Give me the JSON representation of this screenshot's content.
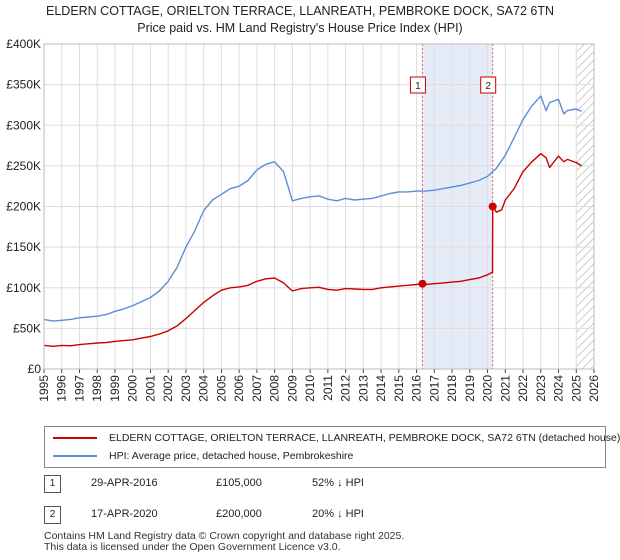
{
  "title_line1": "ELDERN COTTAGE, ORIELTON TERRACE, LLANREATH, PEMBROKE DOCK, SA72 6TN",
  "title_line2": "Price paid vs. HM Land Registry's House Price Index (HPI)",
  "chart_data": {
    "type": "line",
    "xlim": [
      1995,
      2026
    ],
    "ylim": [
      0,
      400000
    ],
    "y_ticks": [
      {
        "value": 0,
        "label": "£0"
      },
      {
        "value": 50000,
        "label": "£50K"
      },
      {
        "value": 100000,
        "label": "£100K"
      },
      {
        "value": 150000,
        "label": "£150K"
      },
      {
        "value": 200000,
        "label": "£200K"
      },
      {
        "value": 250000,
        "label": "£250K"
      },
      {
        "value": 300000,
        "label": "£300K"
      },
      {
        "value": 350000,
        "label": "£350K"
      },
      {
        "value": 400000,
        "label": "£400K"
      }
    ],
    "x_ticks": [
      "1995",
      "1996",
      "1997",
      "1998",
      "1999",
      "2000",
      "2001",
      "2002",
      "2003",
      "2004",
      "2005",
      "2006",
      "2007",
      "2008",
      "2009",
      "2010",
      "2011",
      "2012",
      "2013",
      "2014",
      "2015",
      "2016",
      "2017",
      "2018",
      "2019",
      "2020",
      "2021",
      "2022",
      "2023",
      "2024",
      "2025",
      "2026"
    ],
    "grid": true,
    "highlight_span": [
      2016.33,
      2020.29
    ],
    "data_end_hatch_from": 2025.0,
    "markers": [
      {
        "label": "1",
        "x": 2016.33
      },
      {
        "label": "2",
        "x": 2020.29
      }
    ],
    "series": [
      {
        "name": "ELDERN COTTAGE, ORIELTON TERRACE, LLANREATH, PEMBROKE DOCK, SA72 6TN (detached house)",
        "color": "#cc0000",
        "x": [
          1995.0,
          1995.5,
          1996.0,
          1996.5,
          1997.0,
          1997.5,
          1998.0,
          1998.5,
          1999.0,
          1999.5,
          2000.0,
          2000.5,
          2001.0,
          2001.5,
          2002.0,
          2002.5,
          2003.0,
          2003.5,
          2004.0,
          2004.5,
          2005.0,
          2005.5,
          2006.0,
          2006.5,
          2007.0,
          2007.5,
          2008.0,
          2008.5,
          2009.0,
          2009.5,
          2010.0,
          2010.5,
          2011.0,
          2011.5,
          2012.0,
          2012.5,
          2013.0,
          2013.5,
          2014.0,
          2014.5,
          2015.0,
          2015.5,
          2016.0,
          2016.33,
          2016.5,
          2017.0,
          2017.5,
          2018.0,
          2018.5,
          2019.0,
          2019.5,
          2020.0,
          2020.28,
          2020.29,
          2020.5,
          2020.8,
          2021.0,
          2021.5,
          2022.0,
          2022.5,
          2023.0,
          2023.3,
          2023.5,
          2024.0,
          2024.3,
          2024.5,
          2025.0,
          2025.3
        ],
        "y": [
          29000,
          28000,
          29000,
          28500,
          30000,
          31000,
          32000,
          32500,
          34000,
          35000,
          36000,
          38000,
          40000,
          43000,
          47000,
          53000,
          62000,
          72000,
          82000,
          90000,
          97000,
          100000,
          101000,
          103000,
          108000,
          111000,
          112000,
          106000,
          96000,
          99000,
          100000,
          100500,
          98000,
          97000,
          99000,
          98500,
          98000,
          98000,
          100000,
          101000,
          102000,
          103000,
          104000,
          105000,
          104000,
          105000,
          106000,
          107000,
          108000,
          110000,
          112000,
          116000,
          119000,
          200000,
          193000,
          196000,
          208000,
          222000,
          243000,
          255000,
          265000,
          260000,
          248000,
          262000,
          255000,
          258000,
          254000,
          250000
        ]
      },
      {
        "name": "HPI: Average price, detached house, Pembrokeshire",
        "color": "#5b8ed6",
        "x": [
          1995.0,
          1995.5,
          1996.0,
          1996.5,
          1997.0,
          1997.5,
          1998.0,
          1998.5,
          1999.0,
          1999.5,
          2000.0,
          2000.5,
          2001.0,
          2001.5,
          2002.0,
          2002.5,
          2003.0,
          2003.5,
          2004.0,
          2004.5,
          2005.0,
          2005.5,
          2006.0,
          2006.5,
          2007.0,
          2007.5,
          2008.0,
          2008.5,
          2009.0,
          2009.5,
          2010.0,
          2010.5,
          2011.0,
          2011.5,
          2012.0,
          2012.5,
          2013.0,
          2013.5,
          2014.0,
          2014.5,
          2015.0,
          2015.5,
          2016.0,
          2016.5,
          2017.0,
          2017.5,
          2018.0,
          2018.5,
          2019.0,
          2019.5,
          2020.0,
          2020.5,
          2021.0,
          2021.5,
          2022.0,
          2022.5,
          2023.0,
          2023.3,
          2023.5,
          2024.0,
          2024.3,
          2024.5,
          2025.0,
          2025.3
        ],
        "y": [
          61000,
          59000,
          60000,
          61000,
          63000,
          64000,
          65000,
          67000,
          71000,
          74000,
          78000,
          83000,
          88000,
          96000,
          108000,
          125000,
          150000,
          170000,
          195000,
          208000,
          215000,
          222000,
          225000,
          232000,
          245000,
          252000,
          255000,
          243000,
          207000,
          210000,
          212000,
          213000,
          209000,
          207000,
          210000,
          208000,
          209000,
          210000,
          213000,
          216000,
          218000,
          218000,
          219000,
          219000,
          220000,
          222000,
          224000,
          226000,
          229000,
          232000,
          237000,
          247000,
          263000,
          285000,
          307000,
          324000,
          336000,
          318000,
          328000,
          332000,
          314000,
          318000,
          320000,
          317000
        ]
      }
    ]
  },
  "legend": {
    "items": [
      {
        "label": "ELDERN COTTAGE, ORIELTON TERRACE, LLANREATH, PEMBROKE DOCK, SA72 6TN (detached house)",
        "color": "#cc0000"
      },
      {
        "label": "HPI: Average price, detached house, Pembrokeshire",
        "color": "#5b8ed6"
      }
    ]
  },
  "transactions": [
    {
      "num": "1",
      "date": "29-APR-2016",
      "price": "£105,000",
      "hpi": "52% ↓ HPI"
    },
    {
      "num": "2",
      "date": "17-APR-2020",
      "price": "£200,000",
      "hpi": "20% ↓ HPI"
    }
  ],
  "footer": {
    "line1": "Contains HM Land Registry data © Crown copyright and database right 2025.",
    "line2": "This data is licensed under the Open Government Licence v3.0."
  }
}
